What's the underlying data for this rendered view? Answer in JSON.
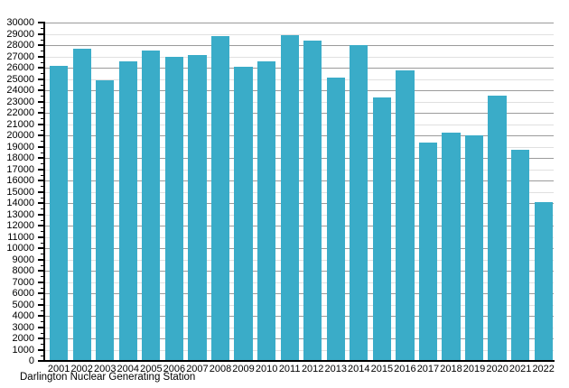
{
  "chart_data": {
    "type": "bar",
    "title": "",
    "caption": "Darlington Nuclear Generating Station",
    "categories": [
      "2001",
      "2002",
      "2003",
      "2004",
      "2005",
      "2006",
      "2007",
      "2008",
      "2009",
      "2010",
      "2011",
      "2012",
      "2013",
      "2014",
      "2015",
      "2016",
      "2017",
      "2018",
      "2019",
      "2020",
      "2021",
      "2022"
    ],
    "values": [
      26150,
      27650,
      24900,
      26550,
      27500,
      27000,
      27150,
      28800,
      26100,
      26550,
      28900,
      28400,
      25100,
      28000,
      23400,
      25750,
      19400,
      20250,
      20000,
      23550,
      18750,
      14100
    ],
    "xlabel": "",
    "ylabel": "",
    "ylim": [
      0,
      30000
    ],
    "ytick_step": 1000,
    "ytick_minor_step": 500,
    "ytick_labels": [
      "0",
      "1000",
      "2000",
      "3000",
      "4000",
      "5000",
      "6000",
      "7000",
      "8000",
      "9000",
      "10000",
      "11000",
      "12000",
      "13000",
      "14000",
      "15000",
      "16000",
      "17000",
      "18000",
      "19000",
      "20000",
      "21000",
      "22000",
      "23000",
      "24000",
      "25000",
      "26000",
      "27000",
      "28000",
      "29000",
      "30000"
    ],
    "grid": "horizontal",
    "legend": "none",
    "bar_color": "#3AACC8",
    "grid_color_dark": "#9b9b9b",
    "grid_color_light": "#e0e0e0",
    "axis_color": "#000000",
    "text_color": "#000000",
    "background_color": "#ffffff"
  }
}
